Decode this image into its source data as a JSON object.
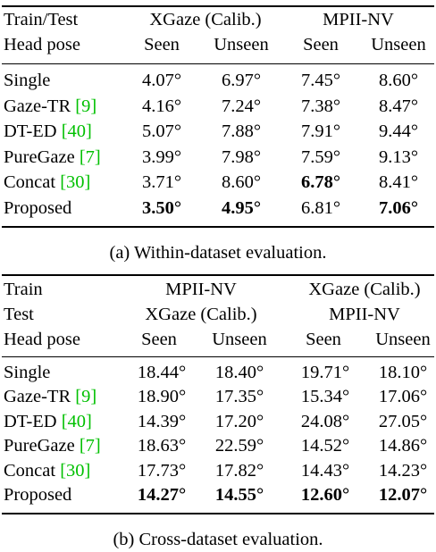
{
  "table_a": {
    "header": {
      "row1_label": "Train/Test",
      "row2_label": "Head pose",
      "group1": "XGaze (Calib.)",
      "group2": "MPII-NV",
      "seen": "Seen",
      "unseen": "Unseen"
    },
    "rows": [
      {
        "method": "Single",
        "ref": "",
        "v": [
          "4.07°",
          "6.97°",
          "7.45°",
          "8.60°"
        ],
        "bold": [
          false,
          false,
          false,
          false
        ]
      },
      {
        "method": "Gaze-TR ",
        "ref": "[9]",
        "v": [
          "4.16°",
          "7.24°",
          "7.38°",
          "8.47°"
        ],
        "bold": [
          false,
          false,
          false,
          false
        ]
      },
      {
        "method": "DT-ED ",
        "ref": "[40]",
        "v": [
          "5.07°",
          "7.88°",
          "7.91°",
          "9.44°"
        ],
        "bold": [
          false,
          false,
          false,
          false
        ]
      },
      {
        "method": "PureGaze ",
        "ref": "[7]",
        "v": [
          "3.99°",
          "7.98°",
          "7.59°",
          "9.13°"
        ],
        "bold": [
          false,
          false,
          false,
          false
        ]
      },
      {
        "method": "Concat ",
        "ref": "[30]",
        "v": [
          "3.71°",
          "8.60°",
          "6.78°",
          "8.41°"
        ],
        "bold": [
          false,
          false,
          true,
          false
        ]
      },
      {
        "method": "Proposed",
        "ref": "",
        "v": [
          "3.50°",
          "4.95°",
          "6.81°",
          "7.06°"
        ],
        "bold": [
          true,
          true,
          false,
          true
        ]
      }
    ],
    "caption": "(a) Within-dataset evaluation."
  },
  "table_b": {
    "header": {
      "row1_label": "Train",
      "row2_label": "Test",
      "row3_label": "Head pose",
      "group1_train": "MPII-NV",
      "group1_test": "XGaze (Calib.)",
      "group2_train": "XGaze (Calib.)",
      "group2_test": "MPII-NV",
      "seen": "Seen",
      "unseen": "Unseen"
    },
    "rows": [
      {
        "method": "Single",
        "ref": "",
        "v": [
          "18.44°",
          "18.40°",
          "19.71°",
          "18.10°"
        ],
        "bold": [
          false,
          false,
          false,
          false
        ]
      },
      {
        "method": "Gaze-TR ",
        "ref": "[9]",
        "v": [
          "18.90°",
          "17.35°",
          "15.34°",
          "17.06°"
        ],
        "bold": [
          false,
          false,
          false,
          false
        ]
      },
      {
        "method": "DT-ED ",
        "ref": "[40]",
        "v": [
          "14.39°",
          "17.20°",
          "24.08°",
          "27.05°"
        ],
        "bold": [
          false,
          false,
          false,
          false
        ]
      },
      {
        "method": "PureGaze ",
        "ref": "[7]",
        "v": [
          "18.63°",
          "22.59°",
          "14.52°",
          "14.86°"
        ],
        "bold": [
          false,
          false,
          false,
          false
        ]
      },
      {
        "method": "Concat ",
        "ref": "[30]",
        "v": [
          "17.73°",
          "17.82°",
          "14.43°",
          "14.23°"
        ],
        "bold": [
          false,
          false,
          false,
          false
        ]
      },
      {
        "method": "Proposed",
        "ref": "",
        "v": [
          "14.27°",
          "14.55°",
          "12.60°",
          "12.07°"
        ],
        "bold": [
          true,
          true,
          true,
          true
        ]
      }
    ],
    "caption": "(b) Cross-dataset evaluation."
  },
  "colors": {
    "ref_link": "#00c000",
    "rule": "#000000"
  }
}
